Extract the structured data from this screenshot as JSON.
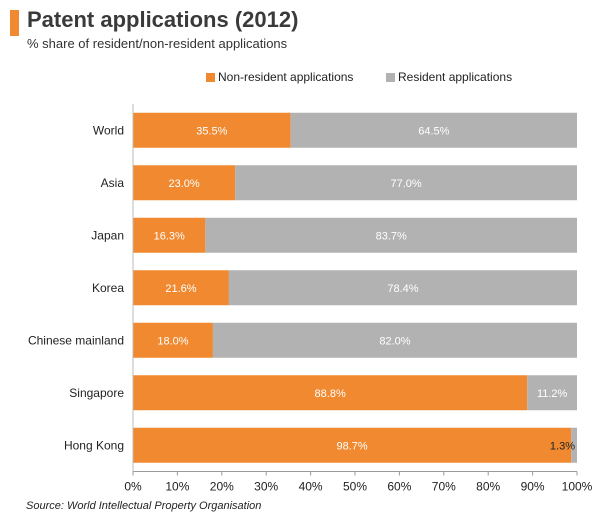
{
  "header": {
    "title": "Patent applications (2012)",
    "subtitle": "% share of resident/non-resident applications"
  },
  "source": "Source: World Intellectual Property Organisation",
  "colors": {
    "non_resident": "#f0892f",
    "resident": "#b2b2b2",
    "title_accent": "#f0892f"
  },
  "chart_data": {
    "type": "bar",
    "orientation": "horizontal",
    "stacked": true,
    "title": "Patent applications (2012)",
    "subtitle": "% share of resident/non-resident applications",
    "categories": [
      "World",
      "Asia",
      "Japan",
      "Korea",
      "Chinese mainland",
      "Singapore",
      "Hong Kong"
    ],
    "series": [
      {
        "name": "Non-resident applications",
        "values": [
          35.5,
          23.0,
          16.3,
          21.6,
          18.0,
          88.8,
          98.7
        ],
        "labels": [
          "35.5%",
          "23.0%",
          "16.3%",
          "21.6%",
          "18.0%",
          "88.8%",
          "98.7%"
        ]
      },
      {
        "name": "Resident applications",
        "values": [
          64.5,
          77.0,
          83.7,
          78.4,
          82.0,
          11.2,
          1.3
        ],
        "labels": [
          "64.5%",
          "77.0%",
          "83.7%",
          "78.4%",
          "82.0%",
          "11.2%",
          "1.3%"
        ]
      }
    ],
    "xlim": [
      0,
      100
    ],
    "xticks": [
      "0%",
      "10%",
      "20%",
      "30%",
      "40%",
      "50%",
      "60%",
      "70%",
      "80%",
      "90%",
      "100%"
    ],
    "xlabel": "",
    "ylabel": "",
    "grid": false,
    "legend_position": "top-right"
  }
}
